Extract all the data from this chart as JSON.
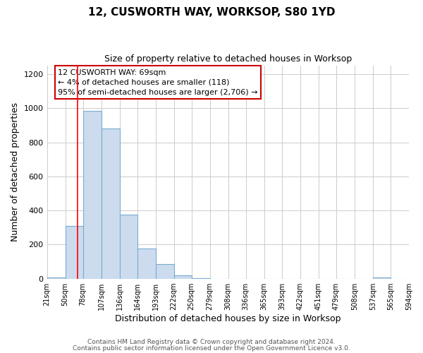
{
  "title": "12, CUSWORTH WAY, WORKSOP, S80 1YD",
  "subtitle": "Size of property relative to detached houses in Worksop",
  "xlabel": "Distribution of detached houses by size in Worksop",
  "ylabel": "Number of detached properties",
  "bin_edges": [
    21,
    50,
    78,
    107,
    136,
    164,
    193,
    222,
    250,
    279,
    308,
    336,
    365,
    393,
    422,
    451,
    479,
    508,
    537,
    565,
    594
  ],
  "bar_heights": [
    5,
    310,
    985,
    880,
    375,
    175,
    85,
    20,
    2,
    0,
    0,
    0,
    0,
    0,
    0,
    0,
    0,
    0,
    5,
    0
  ],
  "bar_color": "#ccdcee",
  "bar_edge_color": "#7aaacf",
  "ylim": [
    0,
    1250
  ],
  "yticks": [
    0,
    200,
    400,
    600,
    800,
    1000,
    1200
  ],
  "x_tick_labels": [
    "21sqm",
    "50sqm",
    "78sqm",
    "107sqm",
    "136sqm",
    "164sqm",
    "193sqm",
    "222sqm",
    "250sqm",
    "279sqm",
    "308sqm",
    "336sqm",
    "365sqm",
    "393sqm",
    "422sqm",
    "451sqm",
    "479sqm",
    "508sqm",
    "537sqm",
    "565sqm",
    "594sqm"
  ],
  "red_line_x": 69,
  "annotation_title": "12 CUSWORTH WAY: 69sqm",
  "annotation_line1": "← 4% of detached houses are smaller (118)",
  "annotation_line2": "95% of semi-detached houses are larger (2,706) →",
  "annotation_box_facecolor": "#ffffff",
  "annotation_box_edgecolor": "#cc0000",
  "footer_line1": "Contains HM Land Registry data © Crown copyright and database right 2024.",
  "footer_line2": "Contains public sector information licensed under the Open Government Licence v3.0.",
  "background_color": "#ffffff",
  "grid_color": "#cccccc",
  "title_fontsize": 11,
  "subtitle_fontsize": 9,
  "axis_label_fontsize": 9,
  "tick_fontsize": 7,
  "annotation_fontsize": 8,
  "footer_fontsize": 6.5
}
